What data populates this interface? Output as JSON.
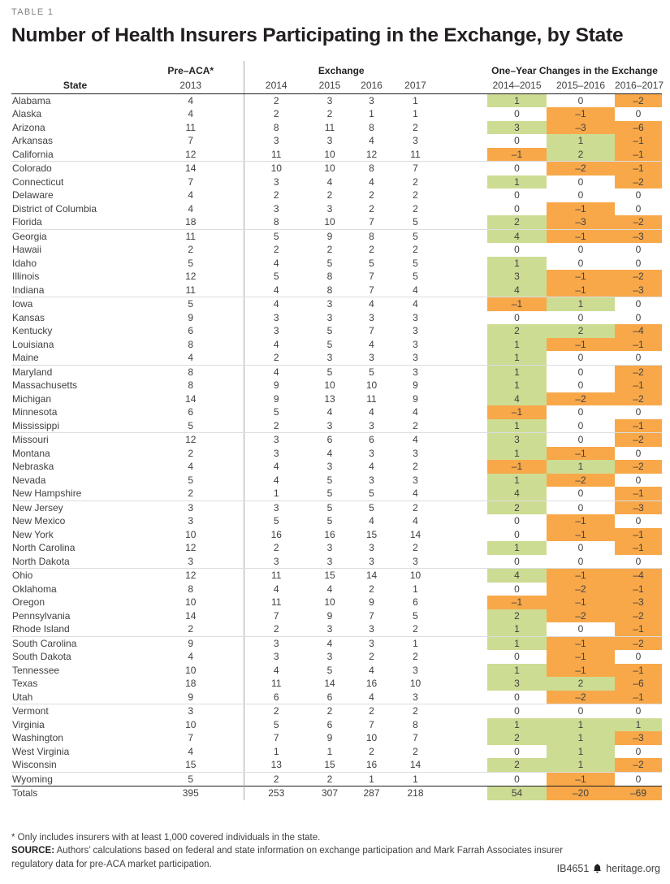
{
  "header": {
    "table_label": "TABLE 1",
    "title": "Number of Health Insurers Participating in the Exchange, by State"
  },
  "table": {
    "group_headers": {
      "pre_aca": "Pre–ACA*",
      "exchange": "Exchange",
      "changes": "One–Year Changes in the Exchange"
    },
    "col_headers": {
      "state": "State",
      "pre_aca_year": "2013",
      "exchange_years": [
        "2014",
        "2015",
        "2016",
        "2017"
      ],
      "change_periods": [
        "2014–2015",
        "2015–2016",
        "2016–2017"
      ]
    },
    "colors": {
      "positive_bg": "#cddc93",
      "negative_bg": "#f8a849",
      "zero_bg": "#ffffff"
    },
    "rows": [
      {
        "state": "Alabama",
        "pre_aca": 4,
        "exchange": [
          2,
          3,
          3,
          1
        ],
        "changes": [
          "1",
          "0",
          "–2"
        ]
      },
      {
        "state": "Alaska",
        "pre_aca": 4,
        "exchange": [
          2,
          2,
          1,
          1
        ],
        "changes": [
          "0",
          "–1",
          "0"
        ]
      },
      {
        "state": "Arizona",
        "pre_aca": 11,
        "exchange": [
          8,
          11,
          8,
          2
        ],
        "changes": [
          "3",
          "–3",
          "–6"
        ]
      },
      {
        "state": "Arkansas",
        "pre_aca": 7,
        "exchange": [
          3,
          3,
          4,
          3
        ],
        "changes": [
          "0",
          "1",
          "–1"
        ]
      },
      {
        "state": "California",
        "pre_aca": 12,
        "exchange": [
          11,
          10,
          12,
          11
        ],
        "changes": [
          "–1",
          "2",
          "–1"
        ]
      },
      {
        "state": "Colorado",
        "pre_aca": 14,
        "exchange": [
          10,
          10,
          8,
          7
        ],
        "changes": [
          "0",
          "–2",
          "–1"
        ]
      },
      {
        "state": "Connecticut",
        "pre_aca": 7,
        "exchange": [
          3,
          4,
          4,
          2
        ],
        "changes": [
          "1",
          "0",
          "–2"
        ]
      },
      {
        "state": "Delaware",
        "pre_aca": 4,
        "exchange": [
          2,
          2,
          2,
          2
        ],
        "changes": [
          "0",
          "0",
          "0"
        ]
      },
      {
        "state": "District of Columbia",
        "pre_aca": 4,
        "exchange": [
          3,
          3,
          2,
          2
        ],
        "changes": [
          "0",
          "–1",
          "0"
        ]
      },
      {
        "state": "Florida",
        "pre_aca": 18,
        "exchange": [
          8,
          10,
          7,
          5
        ],
        "changes": [
          "2",
          "–3",
          "–2"
        ]
      },
      {
        "state": "Georgia",
        "pre_aca": 11,
        "exchange": [
          5,
          9,
          8,
          5
        ],
        "changes": [
          "4",
          "–1",
          "–3"
        ]
      },
      {
        "state": "Hawaii",
        "pre_aca": 2,
        "exchange": [
          2,
          2,
          2,
          2
        ],
        "changes": [
          "0",
          "0",
          "0"
        ]
      },
      {
        "state": "Idaho",
        "pre_aca": 5,
        "exchange": [
          4,
          5,
          5,
          5
        ],
        "changes": [
          "1",
          "0",
          "0"
        ]
      },
      {
        "state": "Illinois",
        "pre_aca": 12,
        "exchange": [
          5,
          8,
          7,
          5
        ],
        "changes": [
          "3",
          "–1",
          "–2"
        ]
      },
      {
        "state": "Indiana",
        "pre_aca": 11,
        "exchange": [
          4,
          8,
          7,
          4
        ],
        "changes": [
          "4",
          "–1",
          "–3"
        ]
      },
      {
        "state": "Iowa",
        "pre_aca": 5,
        "exchange": [
          4,
          3,
          4,
          4
        ],
        "changes": [
          "–1",
          "1",
          "0"
        ]
      },
      {
        "state": "Kansas",
        "pre_aca": 9,
        "exchange": [
          3,
          3,
          3,
          3
        ],
        "changes": [
          "0",
          "0",
          "0"
        ]
      },
      {
        "state": "Kentucky",
        "pre_aca": 6,
        "exchange": [
          3,
          5,
          7,
          3
        ],
        "changes": [
          "2",
          "2",
          "–4"
        ]
      },
      {
        "state": "Louisiana",
        "pre_aca": 8,
        "exchange": [
          4,
          5,
          4,
          3
        ],
        "changes": [
          "1",
          "–1",
          "–1"
        ]
      },
      {
        "state": "Maine",
        "pre_aca": 4,
        "exchange": [
          2,
          3,
          3,
          3
        ],
        "changes": [
          "1",
          "0",
          "0"
        ]
      },
      {
        "state": "Maryland",
        "pre_aca": 8,
        "exchange": [
          4,
          5,
          5,
          3
        ],
        "changes": [
          "1",
          "0",
          "–2"
        ]
      },
      {
        "state": "Massachusetts",
        "pre_aca": 8,
        "exchange": [
          9,
          10,
          10,
          9
        ],
        "changes": [
          "1",
          "0",
          "–1"
        ]
      },
      {
        "state": "Michigan",
        "pre_aca": 14,
        "exchange": [
          9,
          13,
          11,
          9
        ],
        "changes": [
          "4",
          "–2",
          "–2"
        ]
      },
      {
        "state": "Minnesota",
        "pre_aca": 6,
        "exchange": [
          5,
          4,
          4,
          4
        ],
        "changes": [
          "–1",
          "0",
          "0"
        ]
      },
      {
        "state": "Mississippi",
        "pre_aca": 5,
        "exchange": [
          2,
          3,
          3,
          2
        ],
        "changes": [
          "1",
          "0",
          "–1"
        ]
      },
      {
        "state": "Missouri",
        "pre_aca": 12,
        "exchange": [
          3,
          6,
          6,
          4
        ],
        "changes": [
          "3",
          "0",
          "–2"
        ]
      },
      {
        "state": "Montana",
        "pre_aca": 2,
        "exchange": [
          3,
          4,
          3,
          3
        ],
        "changes": [
          "1",
          "–1",
          "0"
        ]
      },
      {
        "state": "Nebraska",
        "pre_aca": 4,
        "exchange": [
          4,
          3,
          4,
          2
        ],
        "changes": [
          "–1",
          "1",
          "–2"
        ]
      },
      {
        "state": "Nevada",
        "pre_aca": 5,
        "exchange": [
          4,
          5,
          3,
          3
        ],
        "changes": [
          "1",
          "–2",
          "0"
        ]
      },
      {
        "state": "New Hampshire",
        "pre_aca": 2,
        "exchange": [
          1,
          5,
          5,
          4
        ],
        "changes": [
          "4",
          "0",
          "–1"
        ]
      },
      {
        "state": "New Jersey",
        "pre_aca": 3,
        "exchange": [
          3,
          5,
          5,
          2
        ],
        "changes": [
          "2",
          "0",
          "–3"
        ]
      },
      {
        "state": "New Mexico",
        "pre_aca": 3,
        "exchange": [
          5,
          5,
          4,
          4
        ],
        "changes": [
          "0",
          "–1",
          "0"
        ]
      },
      {
        "state": "New York",
        "pre_aca": 10,
        "exchange": [
          16,
          16,
          15,
          14
        ],
        "changes": [
          "0",
          "–1",
          "–1"
        ]
      },
      {
        "state": "North Carolina",
        "pre_aca": 12,
        "exchange": [
          2,
          3,
          3,
          2
        ],
        "changes": [
          "1",
          "0",
          "–1"
        ]
      },
      {
        "state": "North Dakota",
        "pre_aca": 3,
        "exchange": [
          3,
          3,
          3,
          3
        ],
        "changes": [
          "0",
          "0",
          "0"
        ]
      },
      {
        "state": "Ohio",
        "pre_aca": 12,
        "exchange": [
          11,
          15,
          14,
          10
        ],
        "changes": [
          "4",
          "–1",
          "–4"
        ]
      },
      {
        "state": "Oklahoma",
        "pre_aca": 8,
        "exchange": [
          4,
          4,
          2,
          1
        ],
        "changes": [
          "0",
          "–2",
          "–1"
        ]
      },
      {
        "state": "Oregon",
        "pre_aca": 10,
        "exchange": [
          11,
          10,
          9,
          6
        ],
        "changes": [
          "–1",
          "–1",
          "–3"
        ]
      },
      {
        "state": "Pennsylvania",
        "pre_aca": 14,
        "exchange": [
          7,
          9,
          7,
          5
        ],
        "changes": [
          "2",
          "–2",
          "–2"
        ]
      },
      {
        "state": "Rhode Island",
        "pre_aca": 2,
        "exchange": [
          2,
          3,
          3,
          2
        ],
        "changes": [
          "1",
          "0",
          "–1"
        ]
      },
      {
        "state": "South Carolina",
        "pre_aca": 9,
        "exchange": [
          3,
          4,
          3,
          1
        ],
        "changes": [
          "1",
          "–1",
          "–2"
        ]
      },
      {
        "state": "South Dakota",
        "pre_aca": 4,
        "exchange": [
          3,
          3,
          2,
          2
        ],
        "changes": [
          "0",
          "–1",
          "0"
        ]
      },
      {
        "state": "Tennessee",
        "pre_aca": 10,
        "exchange": [
          4,
          5,
          4,
          3
        ],
        "changes": [
          "1",
          "–1",
          "–1"
        ]
      },
      {
        "state": "Texas",
        "pre_aca": 18,
        "exchange": [
          11,
          14,
          16,
          10
        ],
        "changes": [
          "3",
          "2",
          "–6"
        ]
      },
      {
        "state": "Utah",
        "pre_aca": 9,
        "exchange": [
          6,
          6,
          4,
          3
        ],
        "changes": [
          "0",
          "–2",
          "–1"
        ]
      },
      {
        "state": "Vermont",
        "pre_aca": 3,
        "exchange": [
          2,
          2,
          2,
          2
        ],
        "changes": [
          "0",
          "0",
          "0"
        ]
      },
      {
        "state": "Virginia",
        "pre_aca": 10,
        "exchange": [
          5,
          6,
          7,
          8
        ],
        "changes": [
          "1",
          "1",
          "1"
        ]
      },
      {
        "state": "Washington",
        "pre_aca": 7,
        "exchange": [
          7,
          9,
          10,
          7
        ],
        "changes": [
          "2",
          "1",
          "–3"
        ]
      },
      {
        "state": "West Virginia",
        "pre_aca": 4,
        "exchange": [
          1,
          1,
          2,
          2
        ],
        "changes": [
          "0",
          "1",
          "0"
        ]
      },
      {
        "state": "Wisconsin",
        "pre_aca": 15,
        "exchange": [
          13,
          15,
          16,
          14
        ],
        "changes": [
          "2",
          "1",
          "–2"
        ]
      },
      {
        "state": "Wyoming",
        "pre_aca": 5,
        "exchange": [
          2,
          2,
          1,
          1
        ],
        "changes": [
          "0",
          "–1",
          "0"
        ]
      }
    ],
    "totals": {
      "state": "Totals",
      "pre_aca": 395,
      "exchange": [
        253,
        307,
        287,
        218
      ],
      "changes": [
        "54",
        "–20",
        "–69"
      ]
    }
  },
  "footer": {
    "footnote": "* Only includes insurers with at least 1,000 covered individuals in the state.",
    "source_label": "SOURCE:",
    "source_text": "Authors’ calculations based on federal and state information on exchange participation and Mark Farrah Associates insurer regulatory data for pre-ACA market participation.",
    "doc_id": "IB4651",
    "site": "heritage.org"
  }
}
